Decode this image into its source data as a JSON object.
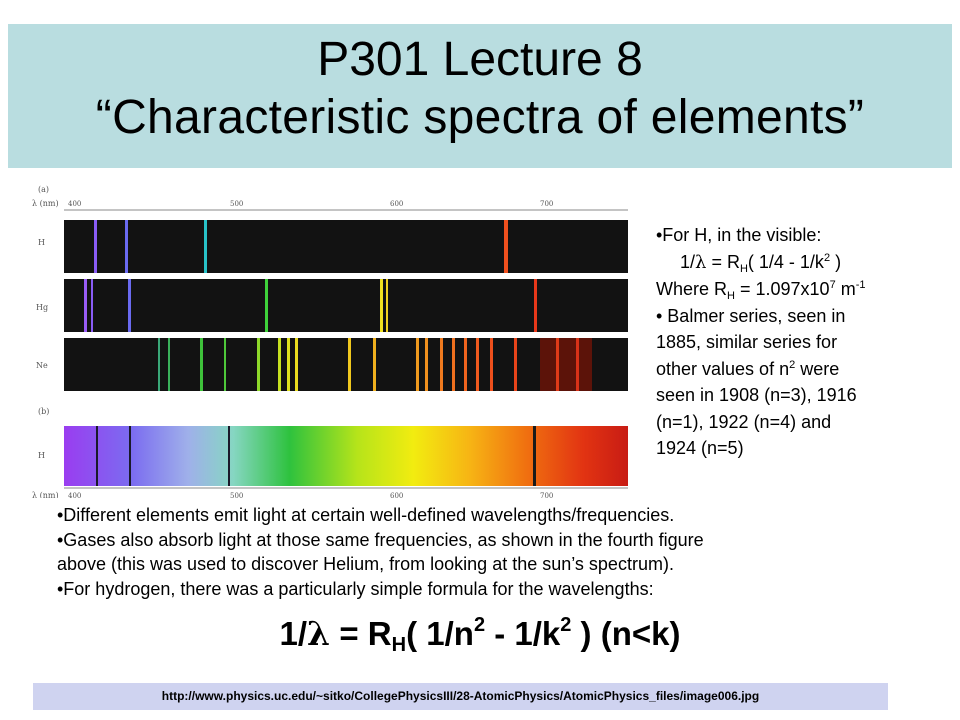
{
  "slide": {
    "title_line1": "P301 Lecture 8",
    "title_line2": "“Characteristic spectra of elements”"
  },
  "figure": {
    "panel_a_label": "(a)",
    "panel_b_label": "(b)",
    "axis_unit_label": "λ (nm)",
    "top_ticks": [
      "400",
      "500",
      "600",
      "700"
    ],
    "bottom_ticks": [
      "400",
      "500",
      "600",
      "700"
    ],
    "row_labels": [
      "H",
      "Hg",
      "Ne",
      "H"
    ]
  },
  "sidebar": {
    "l1": "•For H, in the visible:",
    "l2_pre": "1/",
    "l2_lambda": "λ",
    "l2_mid": " = R",
    "l2_sub": "H",
    "l2_post": "( 1/4  - 1/k",
    "l2_sup": "2",
    "l2_end": " )",
    "l3_pre": "Where R",
    "l3_sub": "H",
    "l3_mid": " = 1.097x10",
    "l3_sup": "7",
    "l3_unit": " m",
    "l3_unit_sup": "-1",
    "l4": "• Balmer series, seen in",
    "l5": "1885, similar series for",
    "l6_pre": "other values of n",
    "l6_sup": "2",
    "l6_post": " were",
    "l7": "seen in 1908 (n=3), 1916",
    "l8": "(n=1), 1922 (n=4) and",
    "l9": "1924 (n=5)"
  },
  "bullets": {
    "b1": "•Different elements emit light at certain well-defined wavelengths/frequencies.",
    "b2a": "•Gases also absorb light at those same frequencies, as shown in the fourth figure",
    "b2b": "above (this was used to discover Helium, from looking at the sun’s spectrum).",
    "b3": "•For hydrogen, there was a particularly simple formula for the wavelengths:"
  },
  "formula": {
    "pre": "1/",
    "lambda": "λ",
    "mid": " = R",
    "sub": "H",
    "p1": "( 1/n",
    "sup1": "2",
    "p2": "  - 1/k",
    "sup2": "2",
    "p3": " )   (n<k)"
  },
  "source_url": "http://www.physics.uc.edu/~sitko/CollegePhysicsIII/28-AtomicPhysics/AtomicPhysics_files/image006.jpg"
}
